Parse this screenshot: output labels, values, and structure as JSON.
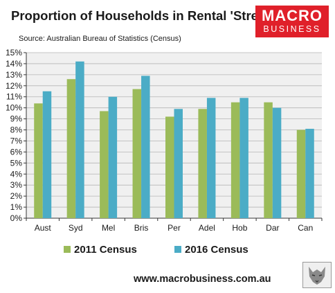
{
  "header": {
    "title": "Proportion of Households in Rental 'Stress'",
    "source": "Source: Australian Bureau of Statistics (Census)"
  },
  "logo": {
    "line1": "MACRO",
    "line2": "BUSINESS"
  },
  "footer": {
    "url": "www.macrobusiness.com.au"
  },
  "colors": {
    "series_2011": "#9bbb59",
    "series_2016": "#4bacc6",
    "plot_bg": "#f0f0f0",
    "logo_bg": "#e0202a"
  },
  "chart_data": {
    "type": "bar",
    "categories": [
      "Aust",
      "Syd",
      "Mel",
      "Bris",
      "Per",
      "Adel",
      "Hob",
      "Dar",
      "Can"
    ],
    "series": [
      {
        "name": "2011 Census",
        "values": [
          10.4,
          12.6,
          9.7,
          11.7,
          9.2,
          9.9,
          10.5,
          10.5,
          8.0
        ]
      },
      {
        "name": "2016 Census",
        "values": [
          11.5,
          14.2,
          11.0,
          12.9,
          9.9,
          10.9,
          10.9,
          10.0,
          8.1
        ]
      }
    ],
    "yticks": [
      "0%",
      "1%",
      "2%",
      "3%",
      "4%",
      "5%",
      "6%",
      "7%",
      "8%",
      "9%",
      "10%",
      "11%",
      "12%",
      "13%",
      "14%",
      "15%"
    ],
    "ylim": [
      0,
      15
    ],
    "grid": true,
    "legend_position": "bottom"
  }
}
